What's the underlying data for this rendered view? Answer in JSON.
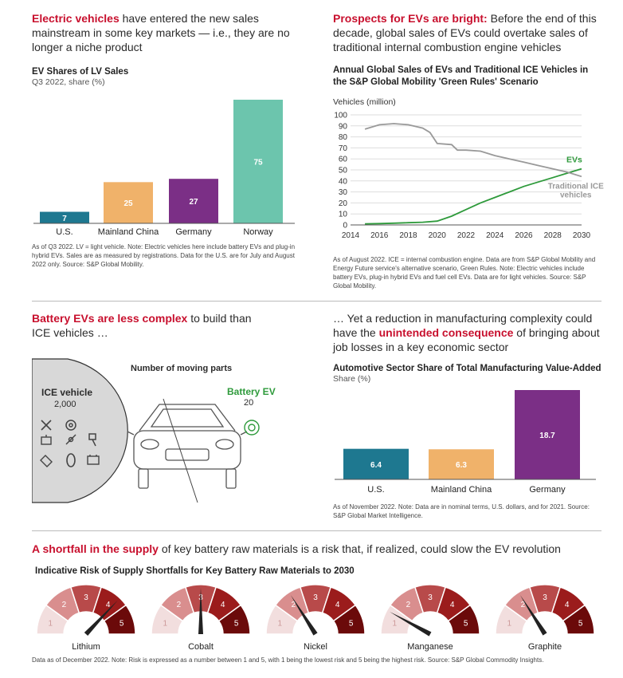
{
  "colors": {
    "accent": "#c8102e",
    "teal": "#1e7890",
    "orange": "#f0b26a",
    "purple": "#7b2f86",
    "mint": "#6cc5ad",
    "green": "#2e9a3b",
    "grey": "#888888"
  },
  "section1": {
    "headline_hl": "Electric vehicles",
    "headline_rest": " have entered the new sales mainstream in some key markets — i.e., they are no longer a niche product",
    "note": "As of Q3 2022. LV = light vehicle. Note: Electric vehicles here include battery EVs and plug-in hybrid EVs. Sales are as measured by registrations. Data for the U.S. are for July and August 2022 only. Source: S&P Global Mobility."
  },
  "section2": {
    "headline_hl": "Prospects for EVs are bright:",
    "headline_rest": " Before the end of this decade, global sales of EVs could overtake sales of traditional internal combustion engine vehicles",
    "note": "As of August 2022. ICE = internal combustion engine. Data are from S&P Global Mobility and Energy Future service's alternative scenario, Green Rules. Note: Electric vehicles include battery EVs, plug-in hybrid EVs and fuel cell EVs. Data are for light vehicles. Source: S&P Global Mobility."
  },
  "section3": {
    "headline_hl": "Battery EVs are less complex",
    "headline_rest": " to build than ICE vehicles …",
    "parts_title": "Number of moving parts",
    "ice_label": "ICE vehicle",
    "ice_value": "2,000",
    "bev_label": "Battery EV",
    "bev_value": "20"
  },
  "section4": {
    "headline_pre": "… Yet a reduction in manufacturing complexity could have the ",
    "headline_hl": "unintended consequence",
    "headline_rest": " of bringing about job losses in a key economic sector",
    "note": "As of November 2022. Note: Data are in nominal terms, U.S. dollars, and for 2021. Source: S&P Global Market Intelligence."
  },
  "section5": {
    "headline_hl": "A shortfall in the supply",
    "headline_rest": " of key battery raw materials is a risk that, if realized, could slow the EV revolution",
    "note": "Data as of December 2022. Note: Risk is expressed as a number between 1 and 5, with 1 being the lowest risk and 5 being the highest risk. Source: S&P Global Commodity Insights."
  },
  "chart_data": [
    {
      "type": "bar",
      "title": "EV Shares of LV Sales",
      "subtitle": "Q3 2022, share (%)",
      "categories": [
        "U.S.",
        "Mainland China",
        "Germany",
        "Norway"
      ],
      "values": [
        7,
        25,
        27,
        75
      ],
      "colors": [
        "#1e7890",
        "#f0b26a",
        "#7b2f86",
        "#6cc5ad"
      ]
    },
    {
      "type": "line",
      "title": "Annual Global Sales of EVs and Traditional ICE Vehicles in the S&P Global Mobility 'Green Rules' Scenario",
      "ylabel": "Vehicles (million)",
      "ylim": [
        0,
        100
      ],
      "yticks": [
        0,
        10,
        20,
        30,
        40,
        50,
        60,
        70,
        80,
        90,
        100
      ],
      "xlim": [
        2014,
        2030
      ],
      "xticks": [
        2014,
        2016,
        2018,
        2020,
        2022,
        2024,
        2026,
        2028,
        2030
      ],
      "grid": true,
      "series": [
        {
          "name": "EVs",
          "color": "#2e9a3b",
          "x": [
            2015,
            2016,
            2017,
            2018,
            2019,
            2020,
            2021,
            2022,
            2023,
            2024,
            2025,
            2026,
            2027,
            2028,
            2029,
            2030
          ],
          "y": [
            1,
            1.2,
            1.6,
            2,
            2.5,
            3.5,
            8,
            14,
            20,
            25,
            30,
            35,
            39,
            43,
            47,
            51
          ]
        },
        {
          "name": "Traditional ICE vehicles",
          "color": "#999999",
          "x": [
            2015,
            2016,
            2017,
            2018,
            2019,
            2019.5,
            2020,
            2021,
            2021.4,
            2022,
            2023,
            2024,
            2025,
            2026,
            2027,
            2028,
            2029,
            2030
          ],
          "y": [
            87,
            91,
            92,
            91,
            88,
            84,
            74,
            73,
            68,
            68,
            67,
            63,
            60,
            57,
            54,
            51,
            48,
            44
          ]
        }
      ]
    },
    {
      "type": "bar",
      "title": "Automotive Sector Share of Total Manufacturing Value-Added",
      "subtitle": "Share (%)",
      "categories": [
        "U.S.",
        "Mainland China",
        "Germany"
      ],
      "values": [
        6.4,
        6.3,
        18.7
      ],
      "colors": [
        "#1e7890",
        "#f0b26a",
        "#7b2f86"
      ]
    },
    {
      "type": "gauge",
      "title": "Indicative Risk of Supply Shortfalls for Key Battery Raw Materials to 2030",
      "scale_labels": [
        "1",
        "2",
        "3",
        "4",
        "5"
      ],
      "segment_colors": [
        "#f2dede",
        "#d98e8e",
        "#b84a4a",
        "#9b1c1c",
        "#6b0a0a"
      ],
      "items": [
        {
          "name": "Lithium",
          "value": 4.2
        },
        {
          "name": "Cobalt",
          "value": 3.0
        },
        {
          "name": "Nickel",
          "value": 2.1
        },
        {
          "name": "Manganese",
          "value": 1.3
        },
        {
          "name": "Graphite",
          "value": 2.1
        }
      ]
    }
  ]
}
